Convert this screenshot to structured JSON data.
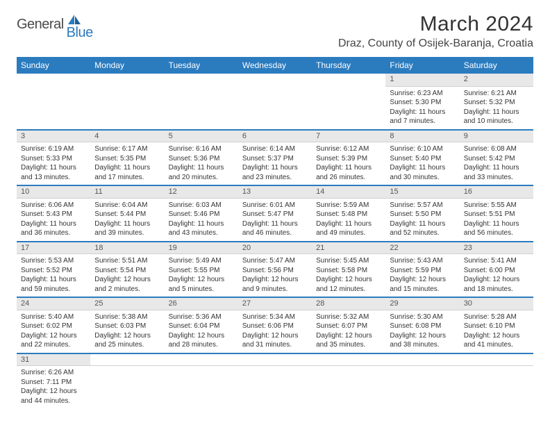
{
  "logo": {
    "part1": "General",
    "part2": "Blue"
  },
  "title": "March 2024",
  "location": "Draz, County of Osijek-Baranja, Croatia",
  "colors": {
    "header_bg": "#2b7bbf",
    "header_text": "#ffffff",
    "daynum_bg": "#e8e8e8",
    "row_border": "#2b7bbf",
    "logo_blue": "#2b7bbf",
    "logo_gray": "#4a4a4a"
  },
  "dayNames": [
    "Sunday",
    "Monday",
    "Tuesday",
    "Wednesday",
    "Thursday",
    "Friday",
    "Saturday"
  ],
  "weeks": [
    [
      null,
      null,
      null,
      null,
      null,
      {
        "n": "1",
        "sr": "6:23 AM",
        "ss": "5:30 PM",
        "dl": "11 hours and 7 minutes."
      },
      {
        "n": "2",
        "sr": "6:21 AM",
        "ss": "5:32 PM",
        "dl": "11 hours and 10 minutes."
      }
    ],
    [
      {
        "n": "3",
        "sr": "6:19 AM",
        "ss": "5:33 PM",
        "dl": "11 hours and 13 minutes."
      },
      {
        "n": "4",
        "sr": "6:17 AM",
        "ss": "5:35 PM",
        "dl": "11 hours and 17 minutes."
      },
      {
        "n": "5",
        "sr": "6:16 AM",
        "ss": "5:36 PM",
        "dl": "11 hours and 20 minutes."
      },
      {
        "n": "6",
        "sr": "6:14 AM",
        "ss": "5:37 PM",
        "dl": "11 hours and 23 minutes."
      },
      {
        "n": "7",
        "sr": "6:12 AM",
        "ss": "5:39 PM",
        "dl": "11 hours and 26 minutes."
      },
      {
        "n": "8",
        "sr": "6:10 AM",
        "ss": "5:40 PM",
        "dl": "11 hours and 30 minutes."
      },
      {
        "n": "9",
        "sr": "6:08 AM",
        "ss": "5:42 PM",
        "dl": "11 hours and 33 minutes."
      }
    ],
    [
      {
        "n": "10",
        "sr": "6:06 AM",
        "ss": "5:43 PM",
        "dl": "11 hours and 36 minutes."
      },
      {
        "n": "11",
        "sr": "6:04 AM",
        "ss": "5:44 PM",
        "dl": "11 hours and 39 minutes."
      },
      {
        "n": "12",
        "sr": "6:03 AM",
        "ss": "5:46 PM",
        "dl": "11 hours and 43 minutes."
      },
      {
        "n": "13",
        "sr": "6:01 AM",
        "ss": "5:47 PM",
        "dl": "11 hours and 46 minutes."
      },
      {
        "n": "14",
        "sr": "5:59 AM",
        "ss": "5:48 PM",
        "dl": "11 hours and 49 minutes."
      },
      {
        "n": "15",
        "sr": "5:57 AM",
        "ss": "5:50 PM",
        "dl": "11 hours and 52 minutes."
      },
      {
        "n": "16",
        "sr": "5:55 AM",
        "ss": "5:51 PM",
        "dl": "11 hours and 56 minutes."
      }
    ],
    [
      {
        "n": "17",
        "sr": "5:53 AM",
        "ss": "5:52 PM",
        "dl": "11 hours and 59 minutes."
      },
      {
        "n": "18",
        "sr": "5:51 AM",
        "ss": "5:54 PM",
        "dl": "12 hours and 2 minutes."
      },
      {
        "n": "19",
        "sr": "5:49 AM",
        "ss": "5:55 PM",
        "dl": "12 hours and 5 minutes."
      },
      {
        "n": "20",
        "sr": "5:47 AM",
        "ss": "5:56 PM",
        "dl": "12 hours and 9 minutes."
      },
      {
        "n": "21",
        "sr": "5:45 AM",
        "ss": "5:58 PM",
        "dl": "12 hours and 12 minutes."
      },
      {
        "n": "22",
        "sr": "5:43 AM",
        "ss": "5:59 PM",
        "dl": "12 hours and 15 minutes."
      },
      {
        "n": "23",
        "sr": "5:41 AM",
        "ss": "6:00 PM",
        "dl": "12 hours and 18 minutes."
      }
    ],
    [
      {
        "n": "24",
        "sr": "5:40 AM",
        "ss": "6:02 PM",
        "dl": "12 hours and 22 minutes."
      },
      {
        "n": "25",
        "sr": "5:38 AM",
        "ss": "6:03 PM",
        "dl": "12 hours and 25 minutes."
      },
      {
        "n": "26",
        "sr": "5:36 AM",
        "ss": "6:04 PM",
        "dl": "12 hours and 28 minutes."
      },
      {
        "n": "27",
        "sr": "5:34 AM",
        "ss": "6:06 PM",
        "dl": "12 hours and 31 minutes."
      },
      {
        "n": "28",
        "sr": "5:32 AM",
        "ss": "6:07 PM",
        "dl": "12 hours and 35 minutes."
      },
      {
        "n": "29",
        "sr": "5:30 AM",
        "ss": "6:08 PM",
        "dl": "12 hours and 38 minutes."
      },
      {
        "n": "30",
        "sr": "5:28 AM",
        "ss": "6:10 PM",
        "dl": "12 hours and 41 minutes."
      }
    ],
    [
      {
        "n": "31",
        "sr": "6:26 AM",
        "ss": "7:11 PM",
        "dl": "12 hours and 44 minutes."
      },
      null,
      null,
      null,
      null,
      null,
      null
    ]
  ],
  "labels": {
    "sunrise": "Sunrise:",
    "sunset": "Sunset:",
    "daylight": "Daylight:"
  }
}
